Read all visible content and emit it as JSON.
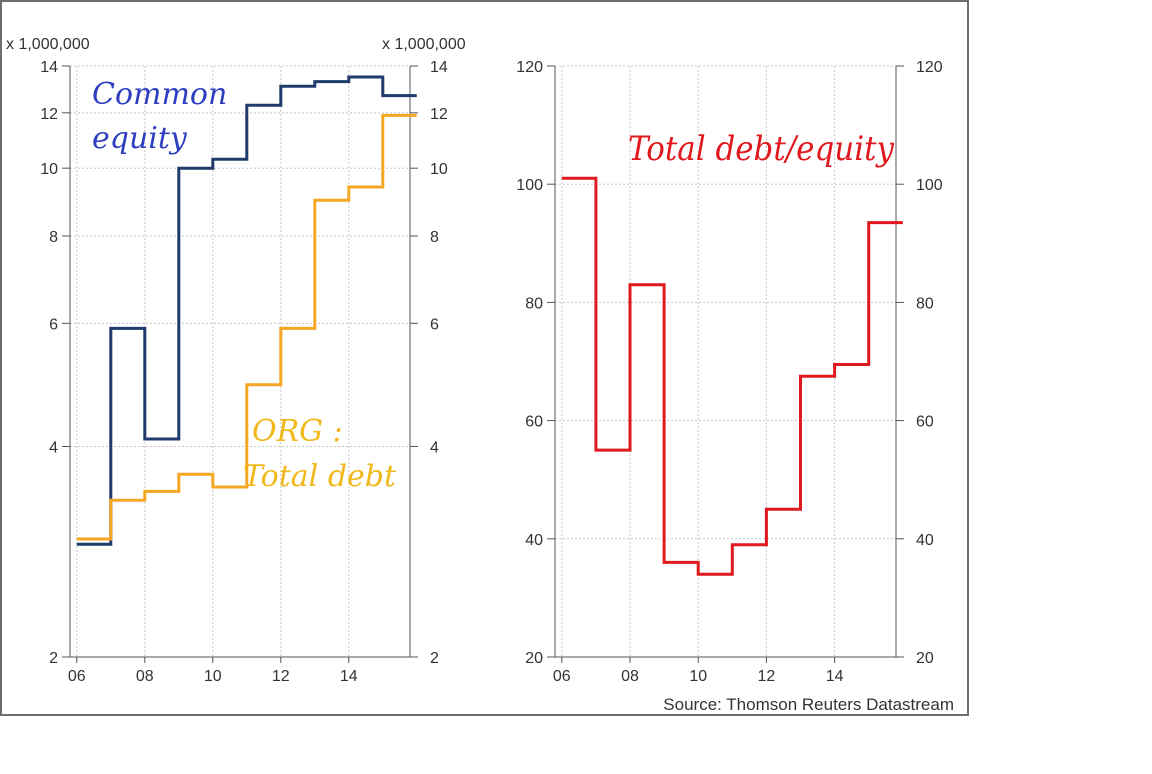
{
  "source": "Source: Thomson Reuters Datastream",
  "colors": {
    "common_equity": "#1f3b6b",
    "total_debt": "#f5a623",
    "debt_equity": "#e0191e",
    "annotation_blue": "#2d3fbf",
    "annotation_orange": "#f0b81a",
    "annotation_red": "#e0191e",
    "grid": "#c8c8c8",
    "axis": "#555555"
  },
  "annotations": {
    "common_equity_line1": "Common",
    "common_equity_line2": "equity",
    "total_debt_line1": "ORG :",
    "total_debt_line2": "Total debt",
    "debt_equity": "Total debt/equity"
  },
  "chart_data": [
    {
      "type": "line",
      "step": true,
      "y_scale": "log",
      "unit_label_left": "x 1,000,000",
      "unit_label_right": "x 1,000,000",
      "xlim": [
        2005.8,
        2015.8
      ],
      "ylim": [
        2,
        14
      ],
      "x_ticks": [
        2006,
        2008,
        2010,
        2012,
        2014
      ],
      "x_tick_labels": [
        "06",
        "08",
        "10",
        "12",
        "14"
      ],
      "y_ticks": [
        2,
        4,
        6,
        8,
        10,
        12,
        14
      ],
      "y_tick_labels": [
        "2",
        "4",
        "6",
        "8",
        "10",
        "12",
        "14"
      ],
      "grid": true,
      "series": [
        {
          "name": "Common equity",
          "color_key": "common_equity",
          "x": [
            2006.5,
            2007.5,
            2008.5,
            2009.5,
            2010.5,
            2011.5,
            2012.5,
            2013.5,
            2014.5,
            2015.5
          ],
          "values": [
            2.9,
            5.9,
            4.1,
            10.0,
            10.3,
            12.3,
            13.1,
            13.3,
            13.5,
            12.7
          ]
        },
        {
          "name": "Total debt",
          "color_key": "total_debt",
          "x": [
            2006.5,
            2007.5,
            2008.5,
            2009.5,
            2010.5,
            2011.5,
            2012.5,
            2013.5,
            2014.5,
            2015.5
          ],
          "values": [
            2.95,
            3.35,
            3.45,
            3.65,
            3.5,
            4.9,
            5.9,
            9.0,
            9.4,
            11.9
          ]
        }
      ]
    },
    {
      "type": "line",
      "step": true,
      "xlim": [
        2005.8,
        2015.8
      ],
      "ylim": [
        20,
        120
      ],
      "x_ticks": [
        2006,
        2008,
        2010,
        2012,
        2014
      ],
      "x_tick_labels": [
        "06",
        "08",
        "10",
        "12",
        "14"
      ],
      "y_ticks": [
        20,
        40,
        60,
        80,
        100,
        120
      ],
      "y_tick_labels": [
        "20",
        "40",
        "60",
        "80",
        "100",
        "120"
      ],
      "grid": true,
      "series": [
        {
          "name": "Total debt/equity",
          "color_key": "debt_equity",
          "x": [
            2006.5,
            2007.5,
            2008.5,
            2009.5,
            2010.5,
            2011.5,
            2012.5,
            2013.5,
            2014.5,
            2015.5
          ],
          "values": [
            101,
            55,
            83,
            36,
            34,
            39,
            45,
            67.5,
            69.5,
            93.5
          ]
        }
      ]
    }
  ]
}
